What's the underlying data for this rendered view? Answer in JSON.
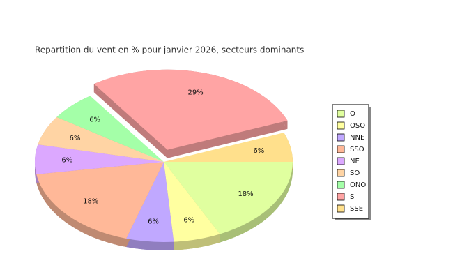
{
  "chart_data": {
    "type": "pie3d",
    "title": "Repartition du vent en % pour janvier 2026, secteurs dominants",
    "categories": [
      "O",
      "OSO",
      "NNE",
      "SSO",
      "NE",
      "SO",
      "ONO",
      "S",
      "SSE"
    ],
    "values": [
      18,
      6,
      6,
      18,
      6,
      6,
      6,
      29,
      6
    ],
    "value_labels": [
      "18%",
      "6%",
      "6%",
      "18%",
      "6%",
      "6%",
      "6%",
      "29%",
      "6%"
    ],
    "colors": [
      "#e0ff9f",
      "#ffffa0",
      "#c0a8ff",
      "#ffb898",
      "#dca8ff",
      "#ffd4a4",
      "#a4ffa8",
      "#ffa4a4",
      "#ffe08c"
    ],
    "exploded": [
      7
    ],
    "legend": "right"
  }
}
